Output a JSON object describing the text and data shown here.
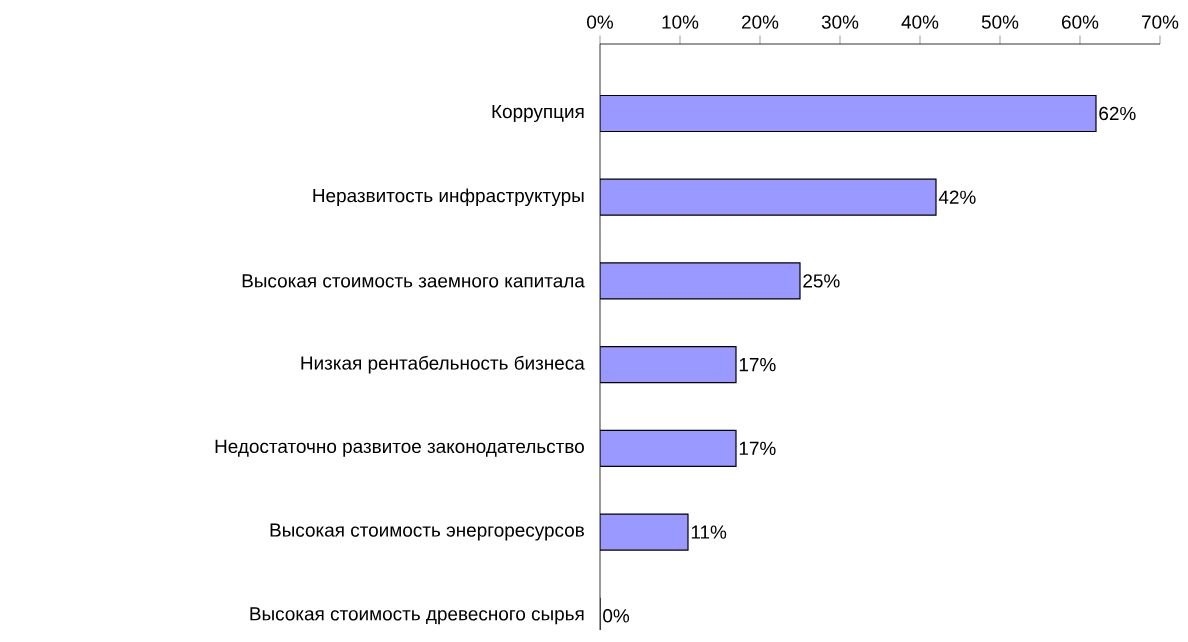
{
  "chart_data": {
    "type": "bar",
    "orientation": "horizontal",
    "categories": [
      "Коррупция",
      "Неразвитость инфраструктуры",
      "Высокая стоимость заемного капитала",
      "Низкая рентабельность бизнеса",
      "Недостаточно развитое законодательство",
      "Высокая стоимость энергоресурсов",
      "Высокая стоимость древесного сырья"
    ],
    "values": [
      62,
      42,
      25,
      17,
      17,
      11,
      0
    ],
    "value_labels": [
      "62%",
      "42%",
      "25%",
      "17%",
      "17%",
      "11%",
      "0%"
    ],
    "color": "#9999ff",
    "xlim": [
      0,
      70
    ],
    "xticks": [
      {
        "value": 0,
        "label": "0%"
      },
      {
        "value": 10,
        "label": "10%"
      },
      {
        "value": 20,
        "label": "20%"
      },
      {
        "value": 30,
        "label": "30%"
      },
      {
        "value": 40,
        "label": "40%"
      },
      {
        "value": 50,
        "label": "50%"
      },
      {
        "value": 60,
        "label": "60%"
      },
      {
        "value": 70,
        "label": "70%"
      }
    ],
    "grid": false
  }
}
